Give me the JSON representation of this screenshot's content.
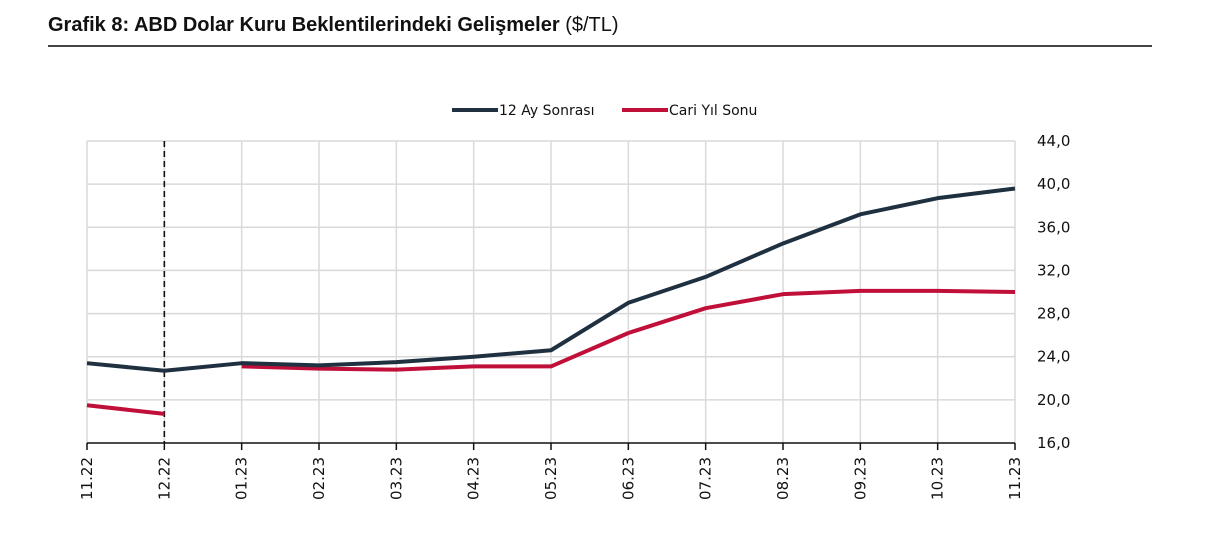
{
  "header": {
    "title_bold": "Grafik 8: ABD Dolar Kuru Beklentilerindeki Gelişmeler",
    "title_unit": "($/TL)"
  },
  "legend": {
    "items": [
      {
        "label": "12 Ay Sonrası",
        "color": "#1f3140"
      },
      {
        "label": "Cari Yıl Sonu",
        "color": "#c0103a"
      }
    ]
  },
  "chart_data": {
    "type": "line",
    "title": "Grafik 8: ABD Dolar Kuru Beklentilerindeki Gelişmeler ($/TL)",
    "xlabel": "",
    "ylabel": "$/TL",
    "ylim": [
      16.0,
      44.0
    ],
    "y_ticks": [
      "16,0",
      "20,0",
      "24,0",
      "28,0",
      "32,0",
      "36,0",
      "40,0",
      "44,0"
    ],
    "y_axis_position": "right",
    "grid": true,
    "legend_position": "top",
    "categories": [
      "11.22",
      "12.22",
      "01.23",
      "02.23",
      "03.23",
      "04.23",
      "05.23",
      "06.23",
      "07.23",
      "08.23",
      "09.23",
      "10.23",
      "11.23"
    ],
    "series": [
      {
        "name": "12 Ay Sonrası",
        "color": "#1f3140",
        "values": [
          23.4,
          22.7,
          23.4,
          23.2,
          23.5,
          24.0,
          24.6,
          29.0,
          31.4,
          34.5,
          37.2,
          38.7,
          39.6
        ]
      },
      {
        "name": "Cari Yıl Sonu",
        "color": "#c0103a",
        "values": [
          19.5,
          18.7,
          23.1,
          22.9,
          22.8,
          23.1,
          23.1,
          26.2,
          28.5,
          29.8,
          30.1,
          30.1,
          30.0
        ],
        "break_after_index": 1
      }
    ],
    "annotations": [
      {
        "type": "vertical-dashed-line",
        "at": "12.22"
      }
    ]
  }
}
